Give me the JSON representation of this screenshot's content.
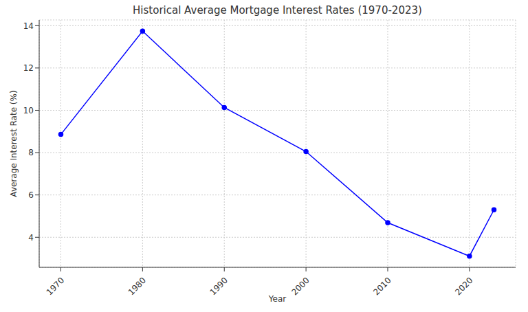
{
  "chart_data": {
    "type": "line",
    "title": "Historical Average Mortgage Interest Rates (1970-2023)",
    "x_label": "Year",
    "y_label": "Average Interest Rate (%)",
    "x": [
      1970,
      1980,
      1990,
      2000,
      2010,
      2020,
      2023
    ],
    "values": [
      8.86,
      13.74,
      10.13,
      8.05,
      4.69,
      3.11,
      5.3
    ],
    "color": "#0000ff",
    "xlim": [
      1967.35,
      2025.65
    ],
    "xticks": [
      1970,
      1980,
      1990,
      2000,
      2010,
      2020
    ],
    "ylim": [
      2.58,
      14.27
    ],
    "yticks": [
      4,
      6,
      8,
      10,
      12,
      14
    ],
    "grid": true,
    "marker": "o",
    "line_style": "solid"
  }
}
